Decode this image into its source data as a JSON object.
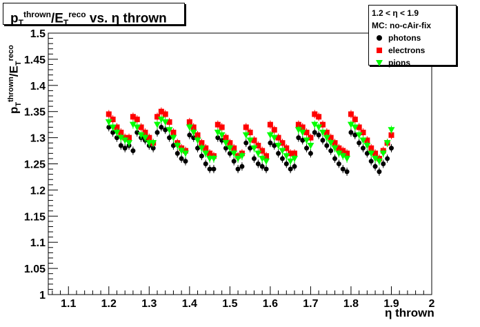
{
  "title": {
    "p": "p",
    "p_sub": "T",
    "p_sup": "thrown",
    "e": "/E",
    "e_sub": "T",
    "e_sup": "reco",
    "rest": " vs. η thrown"
  },
  "legend": {
    "line1": "1.2 < η < 1.9",
    "line2": "MC: no-cAir-fix",
    "entries": [
      "photons",
      "electrons",
      "pions"
    ]
  },
  "axes": {
    "ylabel_p": "p",
    "ylabel_p_sub": "T",
    "ylabel_p_sup": "thrown",
    "ylabel_e": "/E",
    "ylabel_e_sub": "T",
    "ylabel_e_sup": "reco",
    "xlabel": "η thrown"
  },
  "colors": {
    "photons": "#000000",
    "electrons": "#ff0000",
    "pions": "#00ff00"
  },
  "chart_data": {
    "type": "scatter",
    "xlim": [
      1.05,
      2.0
    ],
    "ylim": [
      1.0,
      1.5
    ],
    "x_ticks": [
      "1.1",
      "1.2",
      "1.3",
      "1.4",
      "1.5",
      "1.6",
      "1.7",
      "1.8",
      "1.9",
      "2"
    ],
    "y_ticks": [
      "1",
      "1.05",
      "1.1",
      "1.15",
      "1.2",
      "1.25",
      "1.3",
      "1.35",
      "1.4",
      "1.45",
      "1.5"
    ],
    "grid": false,
    "legend_position": "top-right",
    "series": [
      {
        "name": "photons",
        "marker": "circle",
        "x": [
          1.2,
          1.21,
          1.22,
          1.23,
          1.24,
          1.25,
          1.26,
          1.27,
          1.28,
          1.29,
          1.3,
          1.31,
          1.32,
          1.33,
          1.34,
          1.35,
          1.36,
          1.37,
          1.38,
          1.39,
          1.4,
          1.41,
          1.42,
          1.43,
          1.44,
          1.45,
          1.46,
          1.47,
          1.48,
          1.49,
          1.5,
          1.51,
          1.52,
          1.53,
          1.54,
          1.55,
          1.56,
          1.57,
          1.58,
          1.59,
          1.6,
          1.61,
          1.62,
          1.63,
          1.64,
          1.65,
          1.66,
          1.67,
          1.68,
          1.69,
          1.7,
          1.71,
          1.72,
          1.73,
          1.74,
          1.75,
          1.76,
          1.77,
          1.78,
          1.79,
          1.8,
          1.81,
          1.82,
          1.83,
          1.84,
          1.85,
          1.86,
          1.87,
          1.88,
          1.89,
          1.9
        ],
        "y": [
          1.32,
          1.31,
          1.3,
          1.285,
          1.28,
          1.285,
          1.275,
          1.31,
          1.3,
          1.295,
          1.285,
          1.28,
          1.31,
          1.32,
          1.315,
          1.3,
          1.285,
          1.27,
          1.26,
          1.255,
          1.305,
          1.3,
          1.28,
          1.265,
          1.25,
          1.24,
          1.24,
          1.3,
          1.295,
          1.28,
          1.27,
          1.255,
          1.24,
          1.245,
          1.29,
          1.28,
          1.26,
          1.25,
          1.245,
          1.24,
          1.29,
          1.285,
          1.27,
          1.26,
          1.25,
          1.24,
          1.245,
          1.3,
          1.295,
          1.28,
          1.27,
          1.31,
          1.305,
          1.295,
          1.285,
          1.275,
          1.26,
          1.25,
          1.24,
          1.235,
          1.31,
          1.305,
          1.29,
          1.28,
          1.27,
          1.255,
          1.245,
          1.235,
          1.25,
          1.26,
          1.28
        ]
      },
      {
        "name": "electrons",
        "marker": "square",
        "x": [
          1.2,
          1.21,
          1.22,
          1.23,
          1.24,
          1.25,
          1.26,
          1.27,
          1.28,
          1.29,
          1.3,
          1.31,
          1.32,
          1.33,
          1.34,
          1.35,
          1.36,
          1.37,
          1.38,
          1.39,
          1.4,
          1.41,
          1.42,
          1.43,
          1.44,
          1.45,
          1.46,
          1.47,
          1.48,
          1.49,
          1.5,
          1.51,
          1.52,
          1.53,
          1.54,
          1.55,
          1.56,
          1.57,
          1.58,
          1.59,
          1.6,
          1.61,
          1.62,
          1.63,
          1.64,
          1.65,
          1.66,
          1.67,
          1.68,
          1.69,
          1.7,
          1.71,
          1.72,
          1.73,
          1.74,
          1.75,
          1.76,
          1.77,
          1.78,
          1.79,
          1.8,
          1.81,
          1.82,
          1.83,
          1.84,
          1.85,
          1.86,
          1.87,
          1.88,
          1.89,
          1.9
        ],
        "y": [
          1.345,
          1.335,
          1.32,
          1.31,
          1.3,
          1.3,
          1.34,
          1.335,
          1.32,
          1.31,
          1.3,
          1.29,
          1.34,
          1.35,
          1.345,
          1.33,
          1.31,
          1.29,
          1.28,
          1.275,
          1.33,
          1.32,
          1.305,
          1.29,
          1.28,
          1.27,
          1.265,
          1.325,
          1.32,
          1.3,
          1.29,
          1.28,
          1.265,
          1.27,
          1.32,
          1.31,
          1.295,
          1.285,
          1.275,
          1.265,
          1.325,
          1.315,
          1.3,
          1.29,
          1.28,
          1.27,
          1.27,
          1.325,
          1.32,
          1.31,
          1.3,
          1.345,
          1.34,
          1.325,
          1.31,
          1.3,
          1.29,
          1.28,
          1.275,
          1.27,
          1.345,
          1.335,
          1.32,
          1.31,
          1.295,
          1.28,
          1.27,
          1.26,
          1.275,
          1.29,
          1.305
        ]
      },
      {
        "name": "pions",
        "marker": "triangle-down",
        "x": [
          1.2,
          1.21,
          1.22,
          1.23,
          1.24,
          1.25,
          1.26,
          1.27,
          1.28,
          1.29,
          1.3,
          1.31,
          1.32,
          1.33,
          1.34,
          1.35,
          1.36,
          1.37,
          1.38,
          1.39,
          1.4,
          1.41,
          1.42,
          1.43,
          1.44,
          1.45,
          1.46,
          1.47,
          1.48,
          1.49,
          1.5,
          1.51,
          1.52,
          1.53,
          1.54,
          1.55,
          1.56,
          1.57,
          1.58,
          1.59,
          1.6,
          1.61,
          1.62,
          1.63,
          1.64,
          1.65,
          1.66,
          1.67,
          1.68,
          1.69,
          1.7,
          1.71,
          1.72,
          1.73,
          1.74,
          1.75,
          1.76,
          1.77,
          1.78,
          1.79,
          1.8,
          1.81,
          1.82,
          1.83,
          1.84,
          1.85,
          1.86,
          1.87,
          1.88,
          1.89,
          1.9
        ],
        "y": [
          1.33,
          1.32,
          1.31,
          1.3,
          1.295,
          1.29,
          1.325,
          1.32,
          1.305,
          1.3,
          1.29,
          1.29,
          1.325,
          1.335,
          1.33,
          1.315,
          1.3,
          1.285,
          1.275,
          1.27,
          1.32,
          1.31,
          1.295,
          1.28,
          1.27,
          1.26,
          1.26,
          1.31,
          1.305,
          1.29,
          1.28,
          1.27,
          1.26,
          1.265,
          1.305,
          1.295,
          1.28,
          1.27,
          1.26,
          1.255,
          1.305,
          1.3,
          1.285,
          1.275,
          1.265,
          1.255,
          1.26,
          1.315,
          1.31,
          1.295,
          1.285,
          1.325,
          1.32,
          1.31,
          1.3,
          1.29,
          1.28,
          1.27,
          1.265,
          1.26,
          1.325,
          1.32,
          1.305,
          1.295,
          1.285,
          1.27,
          1.26,
          1.255,
          1.27,
          1.29,
          1.315
        ]
      }
    ]
  }
}
